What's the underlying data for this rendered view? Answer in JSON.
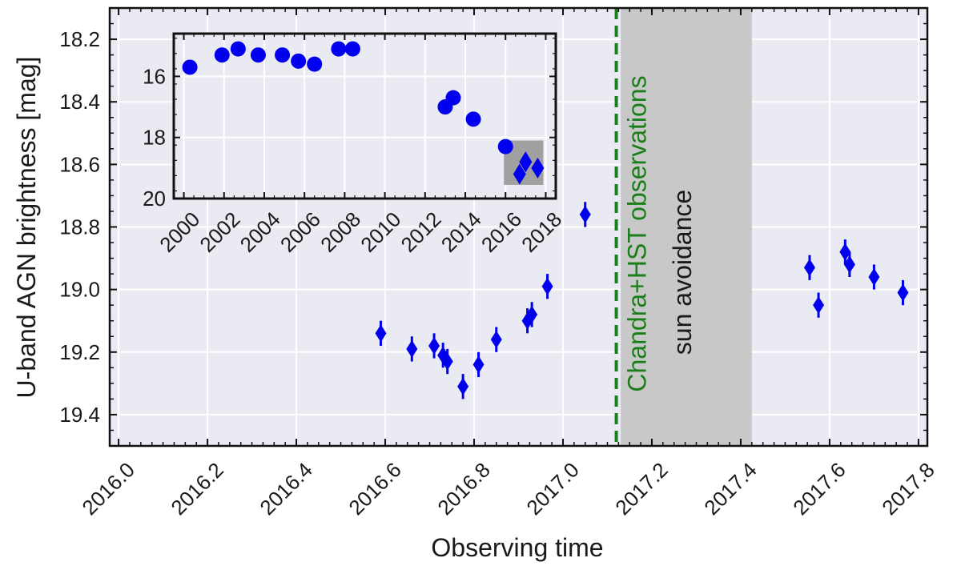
{
  "chart_data": {
    "type": "scatter",
    "xlabel": "Observing time",
    "ylabel": "U-band AGN brightness [mag]",
    "xlim": [
      2015.98,
      2017.82
    ],
    "ylim": [
      19.5,
      18.1
    ],
    "y_inverted": true,
    "grid": true,
    "xticks": [
      "2016.0",
      "2016.2",
      "2016.4",
      "2016.6",
      "2016.8",
      "2017.0",
      "2017.2",
      "2017.4",
      "2017.6",
      "2017.8"
    ],
    "yticks": [
      "18.2",
      "18.4",
      "18.6",
      "18.8",
      "19.0",
      "19.2",
      "19.4"
    ],
    "series": [
      {
        "marker": "diamond",
        "color": "#0000ee",
        "points": [
          {
            "x": 2016.59,
            "y": 19.14,
            "err": 0.04
          },
          {
            "x": 2016.66,
            "y": 19.19,
            "err": 0.04
          },
          {
            "x": 2016.71,
            "y": 19.18,
            "err": 0.04
          },
          {
            "x": 2016.73,
            "y": 19.21,
            "err": 0.04
          },
          {
            "x": 2016.74,
            "y": 19.23,
            "err": 0.04
          },
          {
            "x": 2016.775,
            "y": 19.31,
            "err": 0.04
          },
          {
            "x": 2016.81,
            "y": 19.24,
            "err": 0.04
          },
          {
            "x": 2016.85,
            "y": 19.16,
            "err": 0.04
          },
          {
            "x": 2016.92,
            "y": 19.1,
            "err": 0.04
          },
          {
            "x": 2016.93,
            "y": 19.08,
            "err": 0.04
          },
          {
            "x": 2016.965,
            "y": 18.99,
            "err": 0.04
          },
          {
            "x": 2017.05,
            "y": 18.76,
            "err": 0.04
          },
          {
            "x": 2017.555,
            "y": 18.93,
            "err": 0.04
          },
          {
            "x": 2017.575,
            "y": 19.05,
            "err": 0.04
          },
          {
            "x": 2017.635,
            "y": 18.88,
            "err": 0.04
          },
          {
            "x": 2017.645,
            "y": 18.92,
            "err": 0.04
          },
          {
            "x": 2017.7,
            "y": 18.96,
            "err": 0.04
          },
          {
            "x": 2017.765,
            "y": 19.01,
            "err": 0.04
          }
        ]
      }
    ],
    "annotations": [
      {
        "type": "vline",
        "x": 2017.12,
        "color": "#1a7f1a",
        "style": "dashed",
        "label": "Chandra+HST observations"
      },
      {
        "type": "span",
        "x0": 2017.13,
        "x1": 2017.425,
        "color": "#c8c8c8",
        "label": "sun avoidance"
      }
    ],
    "inset": {
      "type": "scatter",
      "xlim": [
        1999.5,
        2018.5
      ],
      "ylim": [
        20,
        14.6
      ],
      "xticks": [
        "2000",
        "2002",
        "2004",
        "2006",
        "2008",
        "2010",
        "2012",
        "2014",
        "2016",
        "2018"
      ],
      "yticks": [
        "16",
        "18",
        "20"
      ],
      "highlight_box": {
        "x0": 2016.0,
        "x1": 2017.8,
        "y0": 18.1,
        "y1": 19.5,
        "color": "#a0a0a0"
      },
      "circles": [
        {
          "x": 2000.3,
          "y": 15.7
        },
        {
          "x": 2001.9,
          "y": 15.3
        },
        {
          "x": 2002.7,
          "y": 15.1
        },
        {
          "x": 2003.7,
          "y": 15.3
        },
        {
          "x": 2004.9,
          "y": 15.3
        },
        {
          "x": 2005.7,
          "y": 15.5
        },
        {
          "x": 2006.5,
          "y": 15.6
        },
        {
          "x": 2007.7,
          "y": 15.1
        },
        {
          "x": 2008.4,
          "y": 15.1
        },
        {
          "x": 2013.0,
          "y": 17.0
        },
        {
          "x": 2013.4,
          "y": 16.7
        },
        {
          "x": 2014.4,
          "y": 17.4
        },
        {
          "x": 2016.0,
          "y": 18.3
        }
      ],
      "diamonds": [
        {
          "x": 2016.7,
          "y": 19.2
        },
        {
          "x": 2017.0,
          "y": 18.8
        },
        {
          "x": 2017.6,
          "y": 19.0
        }
      ]
    }
  }
}
